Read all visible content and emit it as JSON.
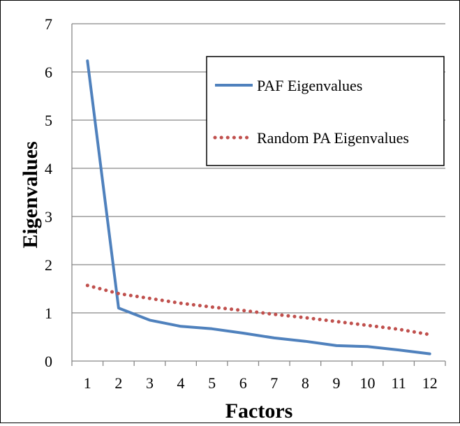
{
  "chart_data": {
    "type": "line",
    "title": "",
    "xlabel": "Factors",
    "ylabel": "Eigenvalues",
    "x": [
      1,
      2,
      3,
      4,
      5,
      6,
      7,
      8,
      9,
      10,
      11,
      12
    ],
    "ylim": [
      0,
      7
    ],
    "yticks": [
      0,
      1,
      2,
      3,
      4,
      5,
      6,
      7
    ],
    "grid": "horizontal",
    "legend_position": "top-right",
    "series": [
      {
        "name": "PAF Eigenvalues",
        "style": "solid",
        "color": "#4F81BD",
        "values": [
          6.23,
          1.1,
          0.85,
          0.72,
          0.67,
          0.58,
          0.48,
          0.41,
          0.32,
          0.3,
          0.23,
          0.15
        ]
      },
      {
        "name": "Random PA Eigenvalues",
        "style": "dotted",
        "color": "#C0504D",
        "values": [
          1.57,
          1.4,
          1.3,
          1.2,
          1.12,
          1.05,
          0.97,
          0.9,
          0.82,
          0.74,
          0.66,
          0.55
        ]
      }
    ]
  }
}
